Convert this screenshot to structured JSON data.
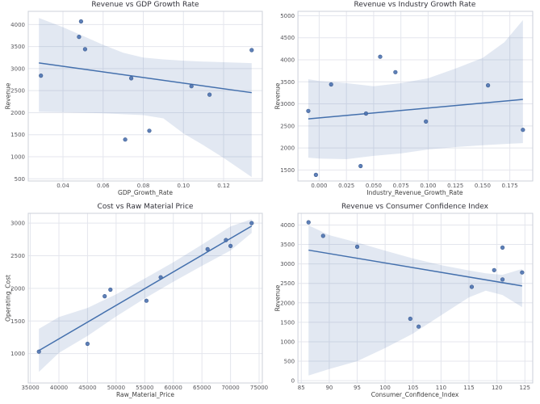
{
  "style": {
    "accent": "#4c72b0",
    "line_color": "#4470ad",
    "point_fill": "#4c72b0",
    "point_stroke": "#3d5c8f",
    "band_fill": "#4c72b0",
    "band_opacity": 0.16,
    "grid_color": "#e4e6ed",
    "spine_color": "#ccd0da",
    "tick_color": "#55555a",
    "background": "#ffffff"
  },
  "chart_data": [
    {
      "type": "scatter",
      "title": "Revenue vs GDP Growth Rate",
      "xlabel": "GDP_Growth_Rate",
      "ylabel": "Revenue",
      "x": [
        0.029,
        0.049,
        0.048,
        0.051,
        0.074,
        0.071,
        0.083,
        0.104,
        0.113,
        0.134
      ],
      "y": [
        2840,
        4070,
        3720,
        3440,
        2780,
        1390,
        1590,
        2600,
        2410,
        3420
      ],
      "xlim": [
        0.0227,
        0.1393
      ],
      "ylim": [
        450,
        4300
      ],
      "xticks": {
        "values": [
          0.04,
          0.06,
          0.08,
          0.1,
          0.12
        ],
        "labels": [
          "0.04",
          "0.06",
          "0.08",
          "0.10",
          "0.12"
        ]
      },
      "yticks": {
        "values": [
          500,
          1000,
          1500,
          2000,
          2500,
          3000,
          3500,
          4000
        ],
        "labels": [
          "500",
          "1000",
          "1500",
          "2000",
          "2500",
          "3000",
          "3500",
          "4000"
        ]
      },
      "trend": {
        "x": [
          0.028,
          0.134
        ],
        "y": [
          3129,
          2454
        ]
      },
      "band": {
        "x": [
          0.028,
          0.04,
          0.05,
          0.06,
          0.07,
          0.08,
          0.09,
          0.1,
          0.11,
          0.12,
          0.134
        ],
        "upper": [
          4150,
          3940,
          3740,
          3540,
          3360,
          3250,
          3210,
          3180,
          3160,
          3145,
          3125
        ],
        "lower": [
          2020,
          2010,
          2000,
          1985,
          1965,
          1945,
          1870,
          1530,
          1260,
          975,
          540
        ]
      }
    },
    {
      "type": "scatter",
      "title": "Revenue vs Industry Growth Rate",
      "xlabel": "Industry_Revenue_Growth_Rate",
      "ylabel": "Revenue",
      "x": [
        -0.01,
        0.056,
        0.07,
        0.011,
        0.043,
        -0.003,
        0.038,
        0.098,
        0.155,
        0.187
      ],
      "y": [
        2840,
        4070,
        3720,
        3440,
        2780,
        1390,
        1590,
        2600,
        3420,
        2410
      ],
      "xlim": [
        -0.0195,
        0.196
      ],
      "ylim": [
        1250,
        5100
      ],
      "xticks": {
        "values": [
          0.0,
          0.025,
          0.05,
          0.075,
          0.1,
          0.125,
          0.15,
          0.175
        ],
        "labels": [
          "0.000",
          "0.025",
          "0.050",
          "0.075",
          "0.100",
          "0.125",
          "0.150",
          "0.175"
        ]
      },
      "yticks": {
        "values": [
          1500,
          2000,
          2500,
          3000,
          3500,
          4000,
          4500,
          5000
        ],
        "labels": [
          "1500",
          "2000",
          "2500",
          "3000",
          "3500",
          "4000",
          "4500",
          "5000"
        ]
      },
      "trend": {
        "x": [
          -0.01,
          0.187
        ],
        "y": [
          2659,
          3101
        ]
      },
      "band": {
        "x": [
          -0.01,
          0.0,
          0.025,
          0.05,
          0.075,
          0.1,
          0.125,
          0.15,
          0.17,
          0.187
        ],
        "upper": [
          3560,
          3520,
          3470,
          3400,
          3470,
          3580,
          3800,
          4040,
          4400,
          4900
        ],
        "lower": [
          1780,
          1760,
          1745,
          1820,
          1875,
          1965,
          2020,
          2060,
          2090,
          2110
        ]
      }
    },
    {
      "type": "scatter",
      "title": "Cost vs Raw Material Price",
      "xlabel": "Raw_Material_Price",
      "ylabel": "Operating_Cost",
      "x": [
        36500,
        45000,
        48000,
        49000,
        55300,
        57800,
        66000,
        69200,
        70000,
        73700
      ],
      "y": [
        1030,
        1150,
        1880,
        1980,
        1810,
        2170,
        2600,
        2740,
        2650,
        3000
      ],
      "xlim": [
        34640,
        75560
      ],
      "ylim": [
        550,
        3150
      ],
      "xticks": {
        "values": [
          35000,
          40000,
          45000,
          50000,
          55000,
          60000,
          65000,
          70000,
          75000
        ],
        "labels": [
          "35000",
          "40000",
          "45000",
          "50000",
          "55000",
          "60000",
          "65000",
          "70000",
          "75000"
        ]
      },
      "yticks": {
        "values": [
          1000,
          1500,
          2000,
          2500,
          3000
        ],
        "labels": [
          "1000",
          "1500",
          "2000",
          "2500",
          "3000"
        ]
      },
      "trend": {
        "x": [
          36500,
          73700
        ],
        "y": [
          1047,
          2955
        ]
      },
      "band": {
        "x": [
          36500,
          40000,
          45000,
          50000,
          55000,
          60000,
          65000,
          70000,
          73700
        ],
        "upper": [
          1380,
          1560,
          1700,
          1910,
          2150,
          2400,
          2670,
          2950,
          3060
        ],
        "lower": [
          720,
          1010,
          1270,
          1570,
          1845,
          2100,
          2345,
          2580,
          2850
        ]
      }
    },
    {
      "type": "scatter",
      "title": "Revenue vs Consumer Confidence Index",
      "xlabel": "Consumer_Confidence_Index",
      "ylabel": "Revenue",
      "x": [
        119.5,
        86.3,
        88.9,
        95.0,
        124.5,
        106.0,
        104.5,
        121.0,
        115.5,
        121.0
      ],
      "y": [
        2840,
        4070,
        3720,
        3440,
        2780,
        1390,
        1590,
        2600,
        2410,
        3420
      ],
      "xlim": [
        84.4,
        126.4
      ],
      "ylim": [
        -60,
        4300
      ],
      "xticks": {
        "values": [
          85,
          90,
          95,
          100,
          105,
          110,
          115,
          120,
          125
        ],
        "labels": [
          "85",
          "90",
          "95",
          "100",
          "105",
          "110",
          "115",
          "120",
          "125"
        ]
      },
      "yticks": {
        "values": [
          0,
          500,
          1000,
          1500,
          2000,
          2500,
          3000,
          3500,
          4000
        ],
        "labels": [
          "0",
          "500",
          "1000",
          "1500",
          "2000",
          "2500",
          "3000",
          "3500",
          "4000"
        ]
      },
      "trend": {
        "x": [
          86.3,
          124.5
        ],
        "y": [
          3354,
          2434
        ]
      },
      "band": {
        "x": [
          86.3,
          90,
          95,
          100,
          105,
          110,
          115,
          118,
          121,
          124.5
        ],
        "upper": [
          3990,
          3740,
          3550,
          3340,
          3140,
          2970,
          2830,
          2760,
          2720,
          2870
        ],
        "lower": [
          130,
          300,
          500,
          840,
          1210,
          1680,
          2140,
          2310,
          2200,
          1890
        ]
      }
    }
  ]
}
